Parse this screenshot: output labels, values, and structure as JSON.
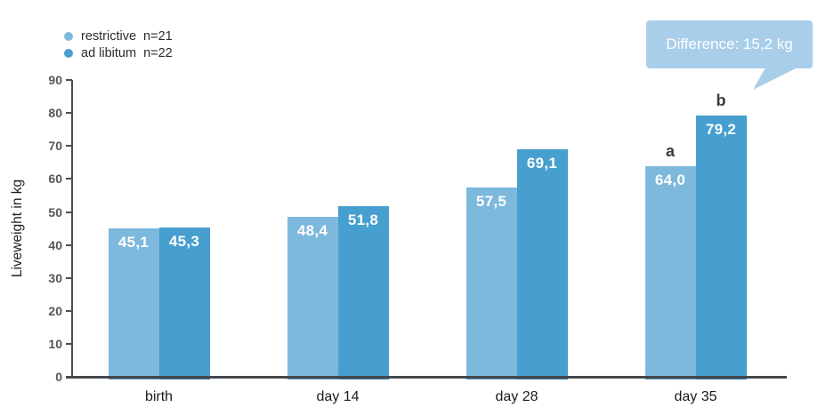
{
  "palette": {
    "restrictive": "#7db8dd",
    "ad_libitum": "#469fce",
    "restrictive_base": "#4c8fbe",
    "ad_libitum_base": "#2d75a8",
    "callout_bg": "#a9cee9",
    "axis": "#4b4e53"
  },
  "legend": {
    "items": [
      {
        "name": "restrictive",
        "count": "n=21",
        "color": "#7db8dd"
      },
      {
        "name": "ad libitum",
        "count": "n=22",
        "color": "#469fce"
      }
    ]
  },
  "callout": {
    "text": "Difference: 15,2 kg"
  },
  "chart_data": {
    "type": "bar",
    "title": "",
    "xlabel": "",
    "ylabel": "Liveweight in kg",
    "ylim": [
      0,
      90
    ],
    "yticks": [
      0,
      10,
      20,
      30,
      40,
      50,
      60,
      70,
      80,
      90
    ],
    "grid": false,
    "legend_position": "top-left",
    "categories": [
      "birth",
      "day 14",
      "day 28",
      "day 35"
    ],
    "series": [
      {
        "name": "restrictive",
        "n": 21,
        "color": "#7db8dd",
        "values": [
          45.1,
          48.4,
          57.5,
          64.0
        ],
        "labels": [
          "45,1",
          "48,4",
          "57,5",
          "64,0"
        ],
        "annotations": [
          "",
          "",
          "",
          "a"
        ]
      },
      {
        "name": "ad libitum",
        "n": 22,
        "color": "#469fce",
        "values": [
          45.3,
          51.8,
          69.1,
          79.2
        ],
        "labels": [
          "45,3",
          "51,8",
          "69,1",
          "79,2"
        ],
        "annotations": [
          "",
          "",
          "",
          "b"
        ]
      }
    ],
    "annotation_note": "Difference: 15,2 kg between ad libitum and restrictive at day 35"
  }
}
